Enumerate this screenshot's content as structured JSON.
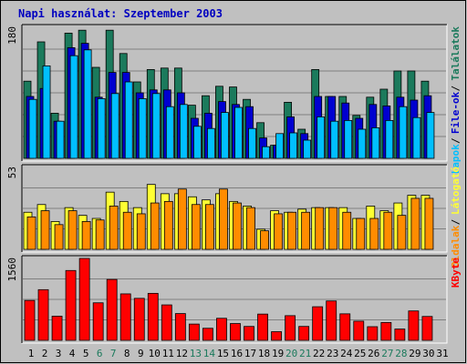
{
  "title": "Napi használat: Szeptember 2003",
  "colors": {
    "background": "#c0c0c0",
    "plot_bg": "#c0c0c0",
    "title": "#0000c0",
    "hits": "#1b7a5c",
    "files": "#0000d0",
    "pages": "#00bfff",
    "visits": "#ffff33",
    "sites": "#ff8c00",
    "kbytes": "#ff0000",
    "grid": "#808080",
    "weekend_label": "#1b7a5c",
    "weekday_label": "#000000"
  },
  "chart_data": [
    {
      "type": "bar",
      "panel": "hits-files-pages",
      "ymax_label": "180",
      "ylim": [
        0,
        180
      ],
      "categories": [
        "1",
        "2",
        "3",
        "4",
        "5",
        "6",
        "7",
        "8",
        "9",
        "10",
        "11",
        "12",
        "13",
        "14",
        "15",
        "16",
        "17",
        "18",
        "19",
        "20",
        "21",
        "22",
        "23",
        "24",
        "25",
        "26",
        "27",
        "28",
        "29",
        "30",
        "31"
      ],
      "weekend_days": [
        "6",
        "7",
        "13",
        "14",
        "20",
        "21",
        "27",
        "28"
      ],
      "legend_labels": [
        "Találatok",
        "File-ok",
        "Lapok"
      ],
      "series": [
        {
          "name": "Találatok",
          "values": [
            106,
            160,
            62,
            172,
            176,
            125,
            176,
            144,
            105,
            122,
            124,
            124,
            73,
            86,
            99,
            98,
            81,
            49,
            18,
            77,
            40,
            122,
            85,
            85,
            59,
            84,
            95,
            120,
            120,
            106,
            0
          ]
        },
        {
          "name": "File-ok",
          "values": [
            85,
            96,
            51,
            152,
            158,
            84,
            118,
            118,
            90,
            94,
            94,
            90,
            55,
            62,
            78,
            74,
            71,
            28,
            18,
            57,
            34,
            85,
            85,
            76,
            55,
            74,
            72,
            84,
            80,
            86,
            0
          ]
        },
        {
          "name": "Lapok",
          "values": [
            81,
            127,
            51,
            141,
            149,
            82,
            89,
            105,
            82,
            89,
            71,
            74,
            44,
            41,
            63,
            70,
            41,
            16,
            34,
            35,
            25,
            57,
            51,
            52,
            40,
            42,
            52,
            71,
            56,
            63,
            0
          ]
        }
      ]
    },
    {
      "type": "bar",
      "panel": "visits-sites",
      "ymax_label": "53",
      "ylim": [
        0,
        53
      ],
      "categories": [
        "1",
        "2",
        "3",
        "4",
        "5",
        "6",
        "7",
        "8",
        "9",
        "10",
        "11",
        "12",
        "13",
        "14",
        "15",
        "16",
        "17",
        "18",
        "19",
        "20",
        "21",
        "22",
        "23",
        "24",
        "25",
        "26",
        "27",
        "28",
        "29",
        "30",
        "31"
      ],
      "legend_labels": [
        "Látogató",
        "Oldalak"
      ],
      "series": [
        {
          "name": "Látogató",
          "values": [
            24,
            29,
            18,
            27,
            22,
            20,
            37,
            31,
            27,
            42,
            36,
            36,
            34,
            32,
            36,
            31,
            28,
            13,
            25,
            24,
            26,
            27,
            27,
            27,
            20,
            28,
            25,
            30,
            35,
            35,
            0
          ]
        },
        {
          "name": "Oldalak",
          "values": [
            21,
            25,
            16,
            25,
            18,
            19,
            28,
            24,
            23,
            30,
            31,
            39,
            29,
            29,
            39,
            30,
            27,
            12,
            23,
            24,
            24,
            27,
            27,
            24,
            20,
            20,
            24,
            22,
            33,
            33,
            0
          ]
        }
      ]
    },
    {
      "type": "bar",
      "panel": "kbytes",
      "ymax_label": "1560",
      "ylim": [
        0,
        1560
      ],
      "categories": [
        "1",
        "2",
        "3",
        "4",
        "5",
        "6",
        "7",
        "8",
        "9",
        "10",
        "11",
        "12",
        "13",
        "14",
        "15",
        "16",
        "17",
        "18",
        "19",
        "20",
        "21",
        "22",
        "23",
        "24",
        "25",
        "26",
        "27",
        "28",
        "29",
        "30",
        "31"
      ],
      "legend_labels": [
        "KByte"
      ],
      "series": [
        {
          "name": "KByte",
          "values": [
            760,
            965,
            460,
            1330,
            1560,
            715,
            1160,
            885,
            800,
            895,
            675,
            510,
            310,
            230,
            420,
            320,
            265,
            500,
            165,
            470,
            265,
            640,
            750,
            505,
            365,
            260,
            340,
            215,
            560,
            455,
            0
          ]
        }
      ]
    }
  ]
}
